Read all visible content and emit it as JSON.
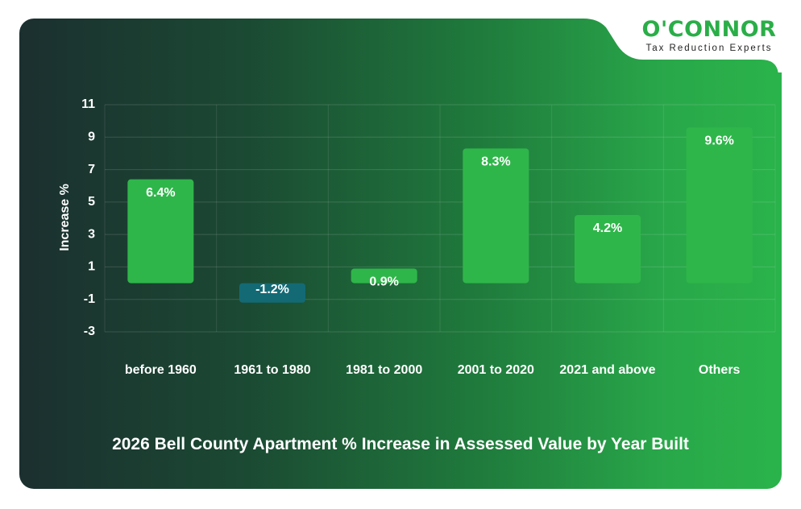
{
  "logo": {
    "brand": "O'CONNOR",
    "tagline": "Tax Reduction Experts"
  },
  "colors": {
    "positive_bar": "#2fb64a",
    "negative_bar": "#136a75",
    "brand_green": "#2aae48"
  },
  "chart_data": {
    "type": "bar",
    "title": "2026 Bell County Apartment % Increase in Assessed Value by Year Built",
    "xlabel": "",
    "ylabel": "Increase %",
    "categories": [
      "before 1960",
      "1961 to 1980",
      "1981 to 2000",
      "2001 to 2020",
      "2021 and above",
      "Others"
    ],
    "values": [
      6.4,
      -1.2,
      0.9,
      8.3,
      4.2,
      9.6
    ],
    "data_labels": [
      "6.4%",
      "-1.2%",
      "0.9%",
      "8.3%",
      "4.2%",
      "9.6%"
    ],
    "yticks": [
      11,
      9,
      7,
      5,
      3,
      1,
      -1,
      -3
    ],
    "ylim": [
      -3,
      11
    ],
    "grid": true,
    "legend": "none"
  }
}
